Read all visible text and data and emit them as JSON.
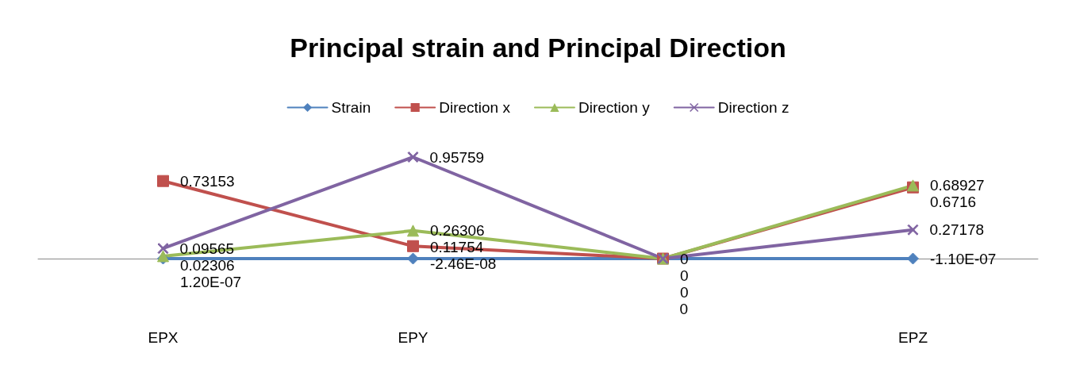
{
  "chart_data": {
    "type": "line",
    "title": "Principal strain and Principal Direction",
    "categories": [
      "EPX",
      "EPY",
      null,
      "EPZ"
    ],
    "legend": "top",
    "grid": false,
    "line_style": "solid",
    "series": [
      {
        "name": "Strain",
        "color": "#4f81bd",
        "marker": "diamond",
        "values": [
          1.2e-07,
          -2.46e-08,
          0,
          -1.1e-07
        ],
        "value_labels": [
          "1.20E-07",
          "-2.46E-08",
          "0",
          "-1.10E-07"
        ]
      },
      {
        "name": "Direction x",
        "color": "#c0504d",
        "marker": "square",
        "values": [
          0.73153,
          0.11754,
          0,
          0.6716
        ],
        "value_labels": [
          "0.73153",
          "0.11754",
          "0",
          "0.6716"
        ]
      },
      {
        "name": "Direction y",
        "color": "#9bbb59",
        "marker": "triangle",
        "values": [
          0.02306,
          0.26306,
          0,
          0.68927
        ],
        "value_labels": [
          "0.02306",
          "0.26306",
          "0",
          "0.68927"
        ]
      },
      {
        "name": "Direction z",
        "color": "#8064a2",
        "marker": "cross",
        "values": [
          0.09565,
          0.95759,
          0,
          0.27178
        ],
        "value_labels": [
          "0.09565",
          "0.95759",
          "0",
          "0.27178"
        ]
      }
    ]
  }
}
